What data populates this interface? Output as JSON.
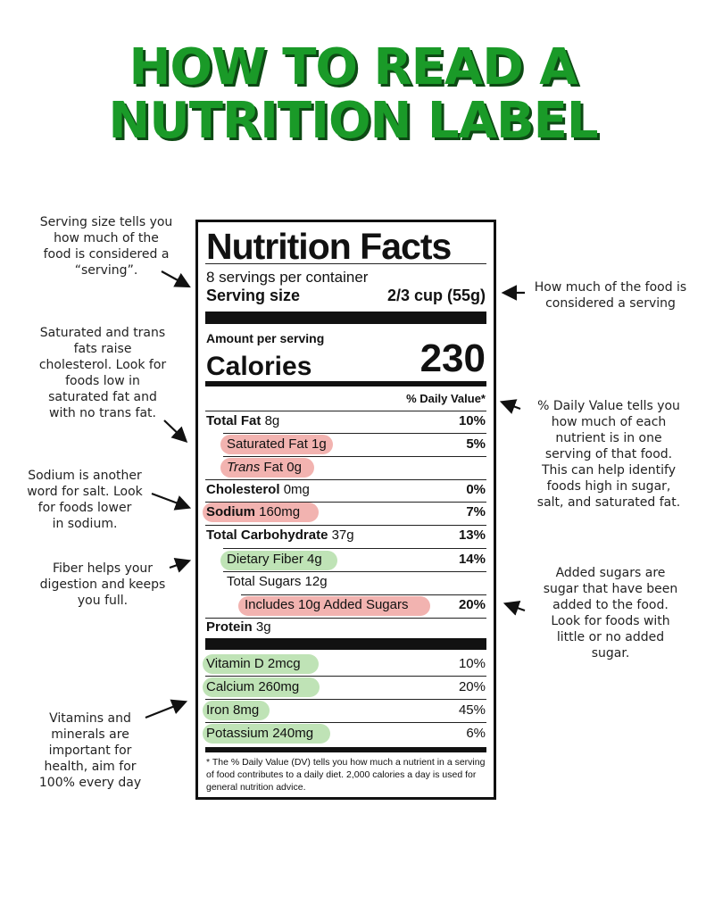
{
  "title": {
    "line1": "HOW TO READ A",
    "line2": "NUTRITION LABEL"
  },
  "colors": {
    "title_green": "#1a9a28",
    "highlight_red": "#f2b3b0",
    "highlight_green": "#bfe3b6"
  },
  "notes": {
    "serving_size": [
      "Serving size tells you",
      "how much of the",
      "food is considered a",
      "“serving”."
    ],
    "saturated": [
      "Saturated and trans",
      "fats raise",
      "cholesterol. Look for",
      "foods low in",
      "saturated fat and",
      "with no trans fat."
    ],
    "sodium": [
      "Sodium is another",
      "word for salt. Look",
      "for foods lower",
      "in sodium."
    ],
    "fiber": [
      "Fiber helps your",
      "digestion and keeps",
      "you full."
    ],
    "vitamins": [
      "Vitamins and",
      "minerals are",
      "important for",
      "health, aim for",
      "100% every day"
    ],
    "serving_right": [
      "How much of the food is",
      "considered a serving"
    ],
    "daily_value": [
      "% Daily Value tells you",
      "how much of each",
      "nutrient is in one",
      "serving of that food.",
      "This can help identify",
      "foods high in sugar,",
      "salt, and saturated fat."
    ],
    "added_sugars": [
      "Added sugars are",
      "sugar that have been",
      "added to the food.",
      "Look for foods with",
      "little or no added",
      "sugar."
    ]
  },
  "label": {
    "heading": "Nutrition Facts",
    "servings": "8 servings per container",
    "serving_size_label": "Serving size",
    "serving_size_value": "2/3 cup (55g)",
    "amount_per_serving": "Amount per serving",
    "calories_label": "Calories",
    "calories_value": "230",
    "dv_header": "% Daily Value*",
    "rows": {
      "total_fat": {
        "name": "Total Fat",
        "amount": "8g",
        "dv": "10%"
      },
      "sat_fat": {
        "name": "Saturated Fat 1g",
        "dv": "5%"
      },
      "trans_fat_italic": "Trans",
      "trans_fat_rest": "Fat 0g",
      "cholesterol": {
        "name": "Cholesterol",
        "amount": "0mg",
        "dv": "0%"
      },
      "sodium": {
        "name": "Sodium",
        "amount": "160mg",
        "dv": "7%"
      },
      "total_carb": {
        "name": "Total Carbohydrate",
        "amount": "37g",
        "dv": "13%"
      },
      "fiber": {
        "name": "Dietary Fiber 4g",
        "dv": "14%"
      },
      "total_sugars": {
        "name": "Total Sugars 12g"
      },
      "added_sugars": {
        "name": "Includes 10g Added Sugars",
        "dv": "20%"
      },
      "protein": {
        "name": "Protein",
        "amount": "3g"
      },
      "vit_d": {
        "name": "Vitamin D 2mcg",
        "dv": "10%"
      },
      "calcium": {
        "name": "Calcium 260mg",
        "dv": "20%"
      },
      "iron": {
        "name": "Iron 8mg",
        "dv": "45%"
      },
      "potassium": {
        "name": "Potassium 240mg",
        "dv": "6%"
      }
    },
    "footnote": "* The % Daily Value (DV) tells you how much a nutrient in a serving of food contributes to a daily diet. 2,000 calories a day is used for general nutrition advice."
  }
}
